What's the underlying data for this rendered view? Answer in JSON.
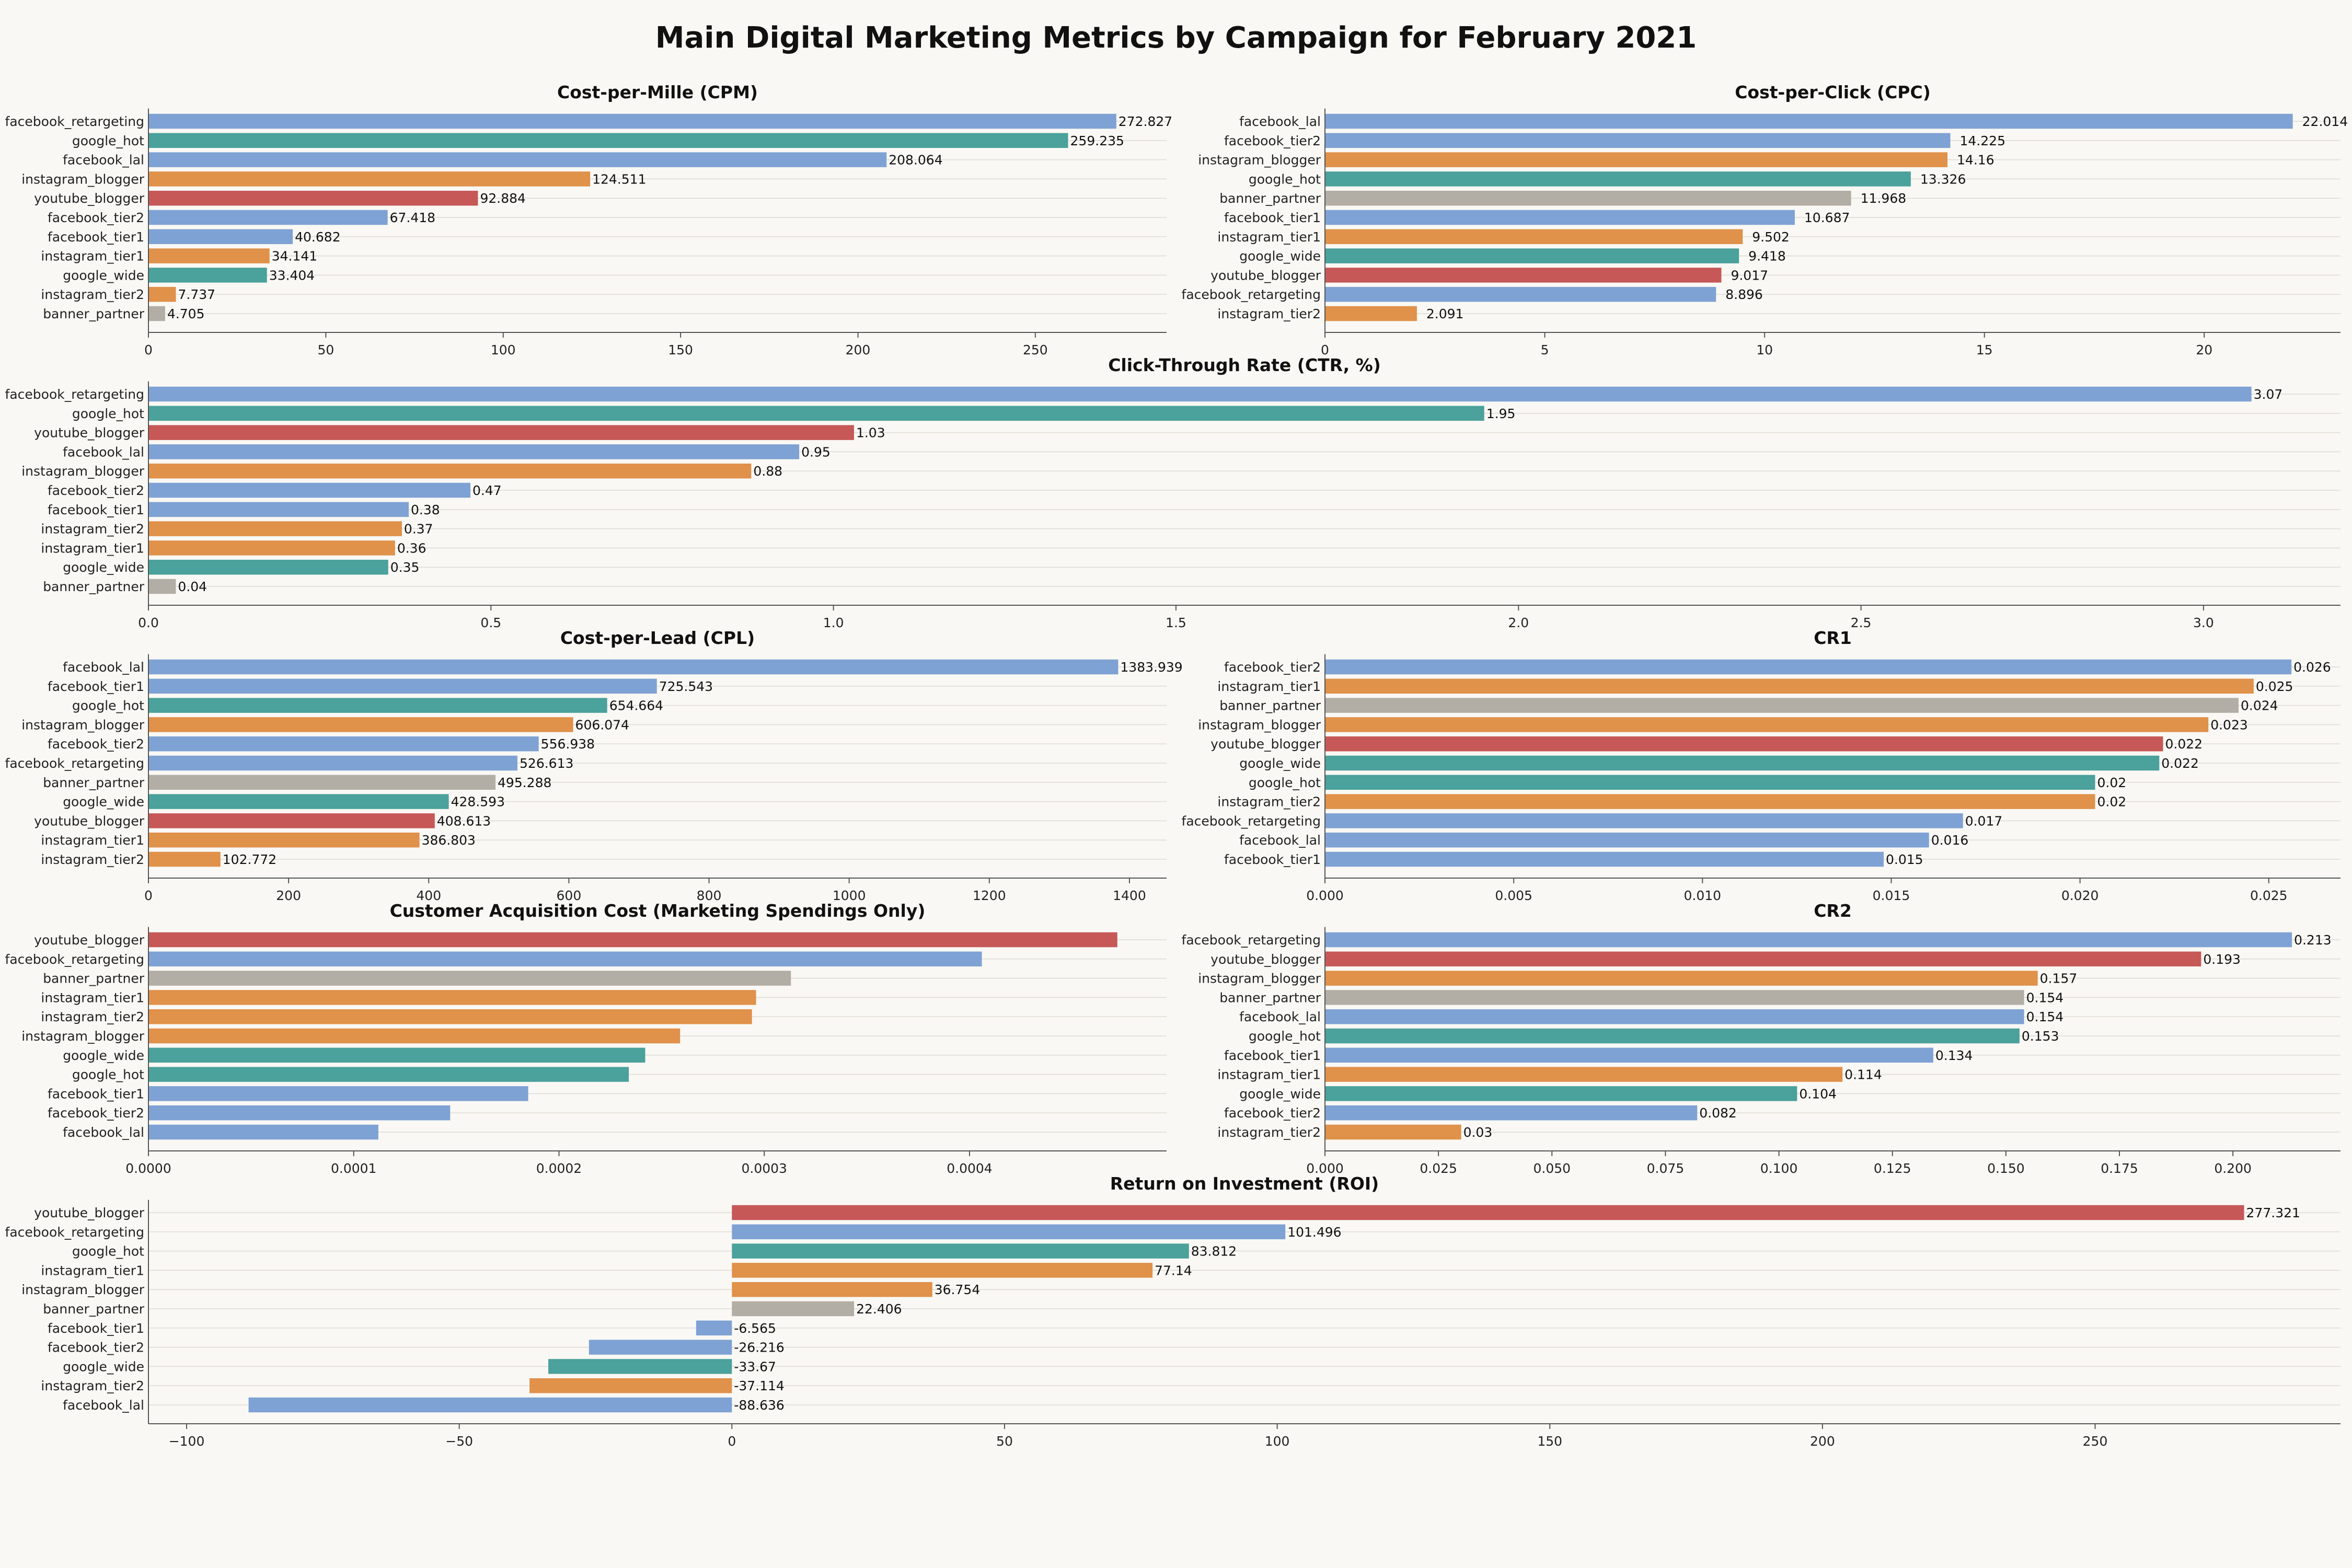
{
  "title": "Main Digital Marketing Metrics by Campaign for February 2021",
  "colors": {
    "facebook": "#7fa2d4",
    "google": "#4ba19b",
    "instagram": "#e0914a",
    "youtube": "#c75858",
    "banner": "#b3aea5"
  },
  "chart_data": [
    {
      "type": "bar",
      "orientation": "horizontal",
      "title": "Cost-per-Mille (CPM)",
      "categories": [
        "facebook_retargeting",
        "google_hot",
        "facebook_lal",
        "instagram_blogger",
        "youtube_blogger",
        "facebook_tier2",
        "facebook_tier1",
        "instagram_tier1",
        "google_wide",
        "instagram_tier2",
        "banner_partner"
      ],
      "values": [
        272.827,
        259.235,
        208.064,
        124.511,
        92.884,
        67.418,
        40.682,
        34.141,
        33.404,
        7.737,
        4.705
      ],
      "labels": [
        "272.827",
        "259.235",
        "208.064",
        "124.511",
        "92.884",
        "67.418",
        "40.682",
        "34.141",
        "33.404",
        "7.737",
        "4.705"
      ],
      "xlim": [
        0,
        287
      ],
      "ticks": [
        0,
        50,
        100,
        150,
        200,
        250
      ],
      "tick_labels": [
        "0",
        "50",
        "100",
        "150",
        "200",
        "250"
      ]
    },
    {
      "type": "bar",
      "orientation": "horizontal",
      "title": "Cost-per-Click (CPC)",
      "categories": [
        "facebook_lal",
        "facebook_tier2",
        "instagram_blogger",
        "google_hot",
        "banner_partner",
        "facebook_tier1",
        "instagram_tier1",
        "google_wide",
        "youtube_blogger",
        "facebook_retargeting",
        "instagram_tier2"
      ],
      "values": [
        22.014,
        14.225,
        14.16,
        13.326,
        11.968,
        10.687,
        9.502,
        9.418,
        9.017,
        8.896,
        2.091
      ],
      "labels": [
        "22.014",
        "14.225",
        "14.16",
        "13.326",
        "11.968",
        "10.687",
        "9.502",
        "9.418",
        "9.017",
        "8.896",
        "2.091"
      ],
      "xlim": [
        0,
        23.1
      ],
      "ticks": [
        0,
        5,
        10,
        15,
        20
      ],
      "tick_labels": [
        "0",
        "5",
        "10",
        "15",
        "20"
      ]
    },
    {
      "type": "bar",
      "orientation": "horizontal",
      "title": "Click-Through Rate (CTR, %)",
      "categories": [
        "facebook_retargeting",
        "google_hot",
        "youtube_blogger",
        "facebook_lal",
        "instagram_blogger",
        "facebook_tier2",
        "facebook_tier1",
        "instagram_tier2",
        "instagram_tier1",
        "google_wide",
        "banner_partner"
      ],
      "values": [
        3.07,
        1.95,
        1.03,
        0.95,
        0.88,
        0.47,
        0.38,
        0.37,
        0.36,
        0.35,
        0.04
      ],
      "labels": [
        "3.07",
        "1.95",
        "1.03",
        "0.95",
        "0.88",
        "0.47",
        "0.38",
        "0.37",
        "0.36",
        "0.35",
        "0.04"
      ],
      "xlim": [
        0,
        3.2
      ],
      "ticks": [
        0,
        0.5,
        1.0,
        1.5,
        2.0,
        2.5,
        3.0
      ],
      "tick_labels": [
        "0.0",
        "0.5",
        "1.0",
        "1.5",
        "2.0",
        "2.5",
        "3.0"
      ]
    },
    {
      "type": "bar",
      "orientation": "horizontal",
      "title": "Cost-per-Lead (CPL)",
      "categories": [
        "facebook_lal",
        "facebook_tier1",
        "google_hot",
        "instagram_blogger",
        "facebook_tier2",
        "facebook_retargeting",
        "banner_partner",
        "google_wide",
        "youtube_blogger",
        "instagram_tier1",
        "instagram_tier2"
      ],
      "values": [
        1383.939,
        725.543,
        654.664,
        606.074,
        556.938,
        526.613,
        495.288,
        428.593,
        408.613,
        386.803,
        102.772
      ],
      "labels": [
        "1383.939",
        "725.543",
        "654.664",
        "606.074",
        "556.938",
        "526.613",
        "495.288",
        "428.593",
        "408.613",
        "386.803",
        "102.772"
      ],
      "xlim": [
        0,
        1453
      ],
      "ticks": [
        0,
        200,
        400,
        600,
        800,
        1000,
        1200,
        1400
      ],
      "tick_labels": [
        "0",
        "200",
        "400",
        "600",
        "800",
        "1000",
        "1200",
        "1400"
      ]
    },
    {
      "type": "bar",
      "orientation": "horizontal",
      "title": "CR1",
      "categories": [
        "facebook_tier2",
        "instagram_tier1",
        "banner_partner",
        "instagram_blogger",
        "youtube_blogger",
        "google_wide",
        "google_hot",
        "instagram_tier2",
        "facebook_retargeting",
        "facebook_lal",
        "facebook_tier1"
      ],
      "values": [
        0.0256,
        0.0246,
        0.0242,
        0.0234,
        0.0222,
        0.0221,
        0.0204,
        0.0204,
        0.0169,
        0.016,
        0.0148
      ],
      "labels": [
        "0.026",
        "0.025",
        "0.024",
        "0.023",
        "0.022",
        "0.022",
        "0.02",
        "0.02",
        "0.017",
        "0.016",
        "0.015"
      ],
      "xlim": [
        0,
        0.0269
      ],
      "ticks": [
        0,
        0.005,
        0.01,
        0.015,
        0.02,
        0.025
      ],
      "tick_labels": [
        "0.000",
        "0.005",
        "0.010",
        "0.015",
        "0.020",
        "0.025"
      ]
    },
    {
      "type": "bar",
      "orientation": "horizontal",
      "title": "Customer Acquisition Cost (Marketing Spendings Only)",
      "categories": [
        "youtube_blogger",
        "facebook_retargeting",
        "banner_partner",
        "instagram_tier1",
        "instagram_tier2",
        "instagram_blogger",
        "google_wide",
        "google_hot",
        "facebook_tier1",
        "facebook_tier2",
        "facebook_lal"
      ],
      "values": [
        0.000472,
        0.000406,
        0.000313,
        0.000296,
        0.000294,
        0.000259,
        0.000242,
        0.000234,
        0.000185,
        0.000147,
        0.000112
      ],
      "labels": [],
      "xlim": [
        0,
        0.000496
      ],
      "ticks": [
        0,
        0.0001,
        0.0002,
        0.0003,
        0.0004
      ],
      "tick_labels": [
        "0.0000",
        "0.0001",
        "0.0002",
        "0.0003",
        "0.0004"
      ]
    },
    {
      "type": "bar",
      "orientation": "horizontal",
      "title": "CR2",
      "categories": [
        "facebook_retargeting",
        "youtube_blogger",
        "instagram_blogger",
        "banner_partner",
        "facebook_lal",
        "google_hot",
        "facebook_tier1",
        "instagram_tier1",
        "google_wide",
        "facebook_tier2",
        "instagram_tier2"
      ],
      "values": [
        0.213,
        0.193,
        0.157,
        0.154,
        0.154,
        0.153,
        0.134,
        0.114,
        0.104,
        0.082,
        0.03
      ],
      "labels": [
        "0.213",
        "0.193",
        "0.157",
        "0.154",
        "0.154",
        "0.153",
        "0.134",
        "0.114",
        "0.104",
        "0.082",
        "0.03"
      ],
      "xlim": [
        0,
        0.2237
      ],
      "ticks": [
        0,
        0.025,
        0.05,
        0.075,
        0.1,
        0.125,
        0.15,
        0.175,
        0.2
      ],
      "tick_labels": [
        "0.000",
        "0.025",
        "0.050",
        "0.075",
        "0.100",
        "0.125",
        "0.150",
        "0.175",
        "0.200"
      ]
    },
    {
      "type": "bar",
      "orientation": "horizontal",
      "title": "Return on Investment (ROI)",
      "categories": [
        "youtube_blogger",
        "facebook_retargeting",
        "google_hot",
        "instagram_tier1",
        "instagram_blogger",
        "banner_partner",
        "facebook_tier1",
        "facebook_tier2",
        "google_wide",
        "instagram_tier2",
        "facebook_lal"
      ],
      "values": [
        277.321,
        101.496,
        83.812,
        77.14,
        36.754,
        22.406,
        -6.565,
        -26.216,
        -33.67,
        -37.114,
        -88.636
      ],
      "labels": [
        "277.321",
        "101.496",
        "83.812",
        "77.14",
        "36.754",
        "22.406",
        "-6.565",
        "-26.216",
        "-33.67",
        "-37.114",
        "-88.636"
      ],
      "xlim": [
        -107,
        295
      ],
      "ticks": [
        -100,
        -50,
        0,
        50,
        100,
        150,
        200,
        250
      ],
      "tick_labels": [
        "−100",
        "−50",
        "0",
        "50",
        "100",
        "150",
        "200",
        "250"
      ]
    }
  ]
}
